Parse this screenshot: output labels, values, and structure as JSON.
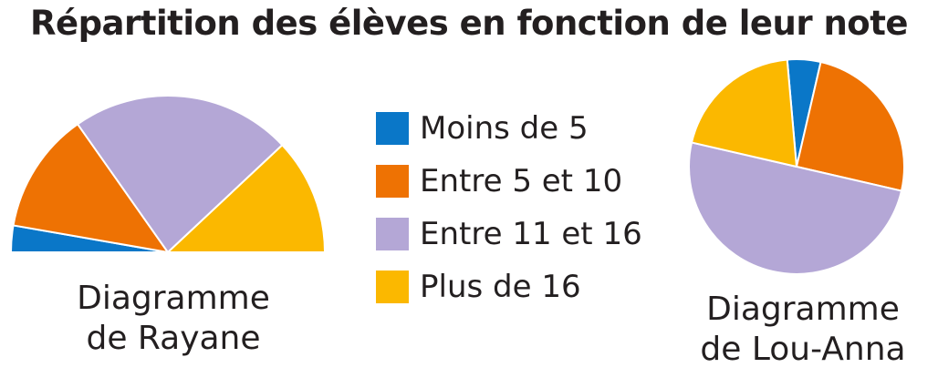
{
  "title": "Répartition des élèves en fonction de leur note",
  "legend": {
    "items": [
      {
        "label": "Moins de 5",
        "color": "#0a77c8"
      },
      {
        "label": "Entre 5 et 10",
        "color": "#ee7203"
      },
      {
        "label": "Entre 11 et 16",
        "color": "#b4a7d6"
      },
      {
        "label": "Plus de 16",
        "color": "#fbb800"
      }
    ]
  },
  "captions": {
    "rayane": [
      "Diagramme",
      "de Rayane"
    ],
    "louanna": [
      "Diagramme",
      "de Lou-Anna"
    ]
  },
  "chart_data": [
    {
      "type": "pie",
      "variant": "semicircle",
      "categories": [
        "Moins de 5",
        "Entre 5 et 10",
        "Entre 11 et 16",
        "Plus de 16"
      ],
      "values": [
        5.5,
        25,
        45.5,
        24
      ],
      "unit": "percent"
    },
    {
      "type": "pie",
      "categories": [
        "Moins de 5",
        "Entre 5 et 10",
        "Entre 11 et 16",
        "Plus de 16"
      ],
      "values": [
        5,
        25,
        50,
        20
      ],
      "unit": "percent"
    }
  ]
}
